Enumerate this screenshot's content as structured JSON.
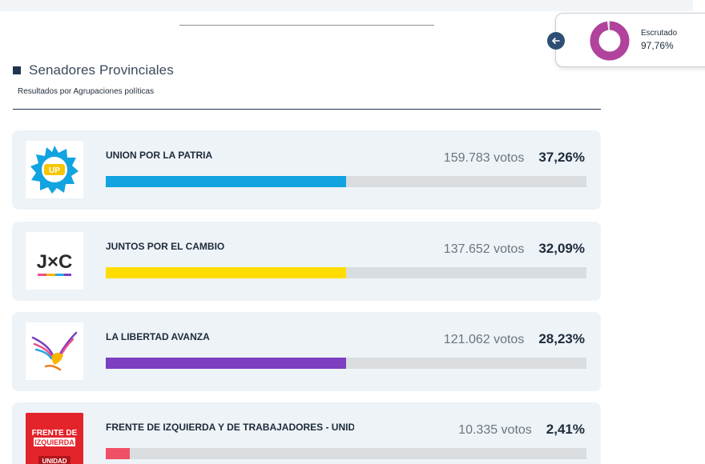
{
  "section": {
    "title": "Senadores Provinciales",
    "subtitle": "Resultados por Agrupaciones políticas"
  },
  "scrutiny": {
    "label": "Escrutado",
    "value": "97,76%",
    "fraction": 0.9776,
    "color": "#b1439c"
  },
  "results": [
    {
      "name": "UNION POR LA PATRIA",
      "votes": "159.783 votos",
      "pct": "37,26%",
      "bar_fraction": 0.5,
      "color": "#12a3e1",
      "logo": "up-badge-icon"
    },
    {
      "name": "JUNTOS POR EL CAMBIO",
      "votes": "137.652 votos",
      "pct": "32,09%",
      "bar_fraction": 0.5,
      "color": "#ffdd00",
      "logo": "jxc-logo-icon",
      "logo_text": "J×C"
    },
    {
      "name": "LA LIBERTAD AVANZA",
      "votes": "121.062 votos",
      "pct": "28,23%",
      "bar_fraction": 0.5,
      "color": "#7b3fc0",
      "logo": "eagle-logo-icon"
    },
    {
      "name": "FRENTE DE IZQUIERDA Y DE TRABAJADORES - UNIDAD",
      "votes": "10.335 votos",
      "pct": "2,41%",
      "bar_fraction": 0.05,
      "color": "#f05066",
      "logo": "fit-logo-icon",
      "logo_lines": [
        "FRENTE DE",
        "IZQUIERDA",
        "UNIDAD"
      ]
    }
  ]
}
